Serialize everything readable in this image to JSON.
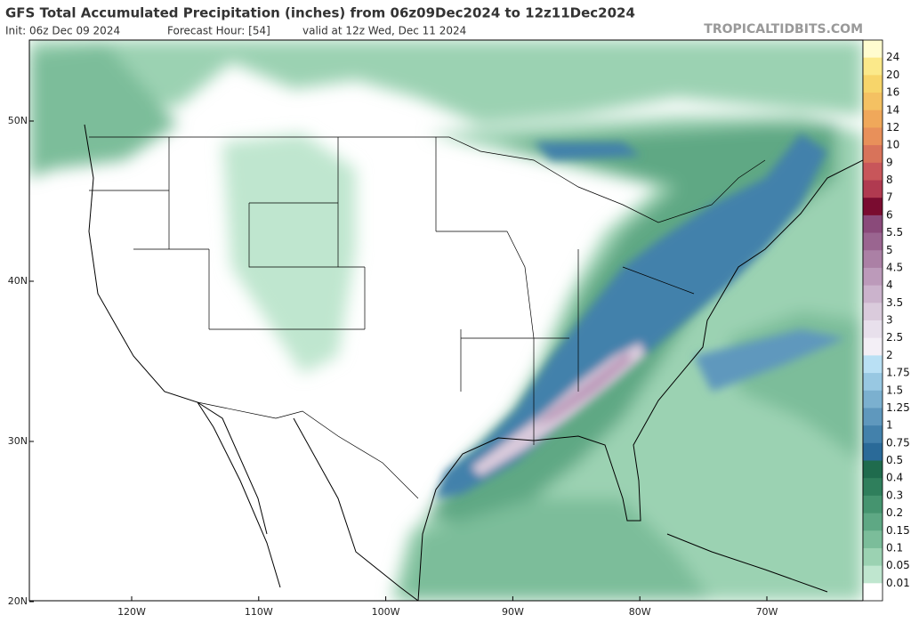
{
  "header": {
    "title": "GFS Total Accumulated Precipitation (inches) from 06z09Dec2024 to 12z11Dec2024",
    "init": "Init: 06z Dec 09 2024",
    "forecast_hour": "Forecast Hour: [54]",
    "valid": "valid at 12z Wed, Dec 11 2024",
    "watermark": "TROPICALTIDBITS.COM"
  },
  "lat_ticks": [
    {
      "value": 50,
      "label": "50N"
    },
    {
      "value": 40,
      "label": "40N"
    },
    {
      "value": 30,
      "label": "30N"
    },
    {
      "value": 20,
      "label": "20N"
    }
  ],
  "lon_ticks": [
    {
      "value": -120,
      "label": "120W"
    },
    {
      "value": -110,
      "label": "110W"
    },
    {
      "value": -100,
      "label": "100W"
    },
    {
      "value": -90,
      "label": "90W"
    },
    {
      "value": -80,
      "label": "80W"
    },
    {
      "value": -70,
      "label": "70W"
    }
  ],
  "legend": {
    "labels": [
      24,
      20,
      16,
      14,
      12,
      10,
      9,
      8,
      7,
      6,
      5.5,
      5,
      4.5,
      4,
      3.5,
      3,
      2.5,
      2,
      1.75,
      1.5,
      1.25,
      1,
      0.75,
      0.5,
      0.4,
      0.3,
      0.2,
      0.15,
      0.1,
      0.05,
      0.01
    ],
    "colors": [
      "#fffccf",
      "#fbe98a",
      "#f7d56a",
      "#f4c162",
      "#f0a85a",
      "#e8905a",
      "#d8735a",
      "#c8565a",
      "#b03a50",
      "#7a0c30",
      "#8a4a7a",
      "#9a6590",
      "#ab80a5",
      "#bc9aba",
      "#cbb3cc",
      "#dacbdc",
      "#e8e0ec",
      "#f3eff6",
      "#b9e0f4",
      "#98c8e2",
      "#7bb0cf",
      "#5f98bd",
      "#4381ab",
      "#2a6a98",
      "#1f6b4d",
      "#2f7f5c",
      "#45946f",
      "#5ea884",
      "#7bbd9a",
      "#9bd2b2",
      "#bfe6cf",
      "#ffffff"
    ]
  }
}
